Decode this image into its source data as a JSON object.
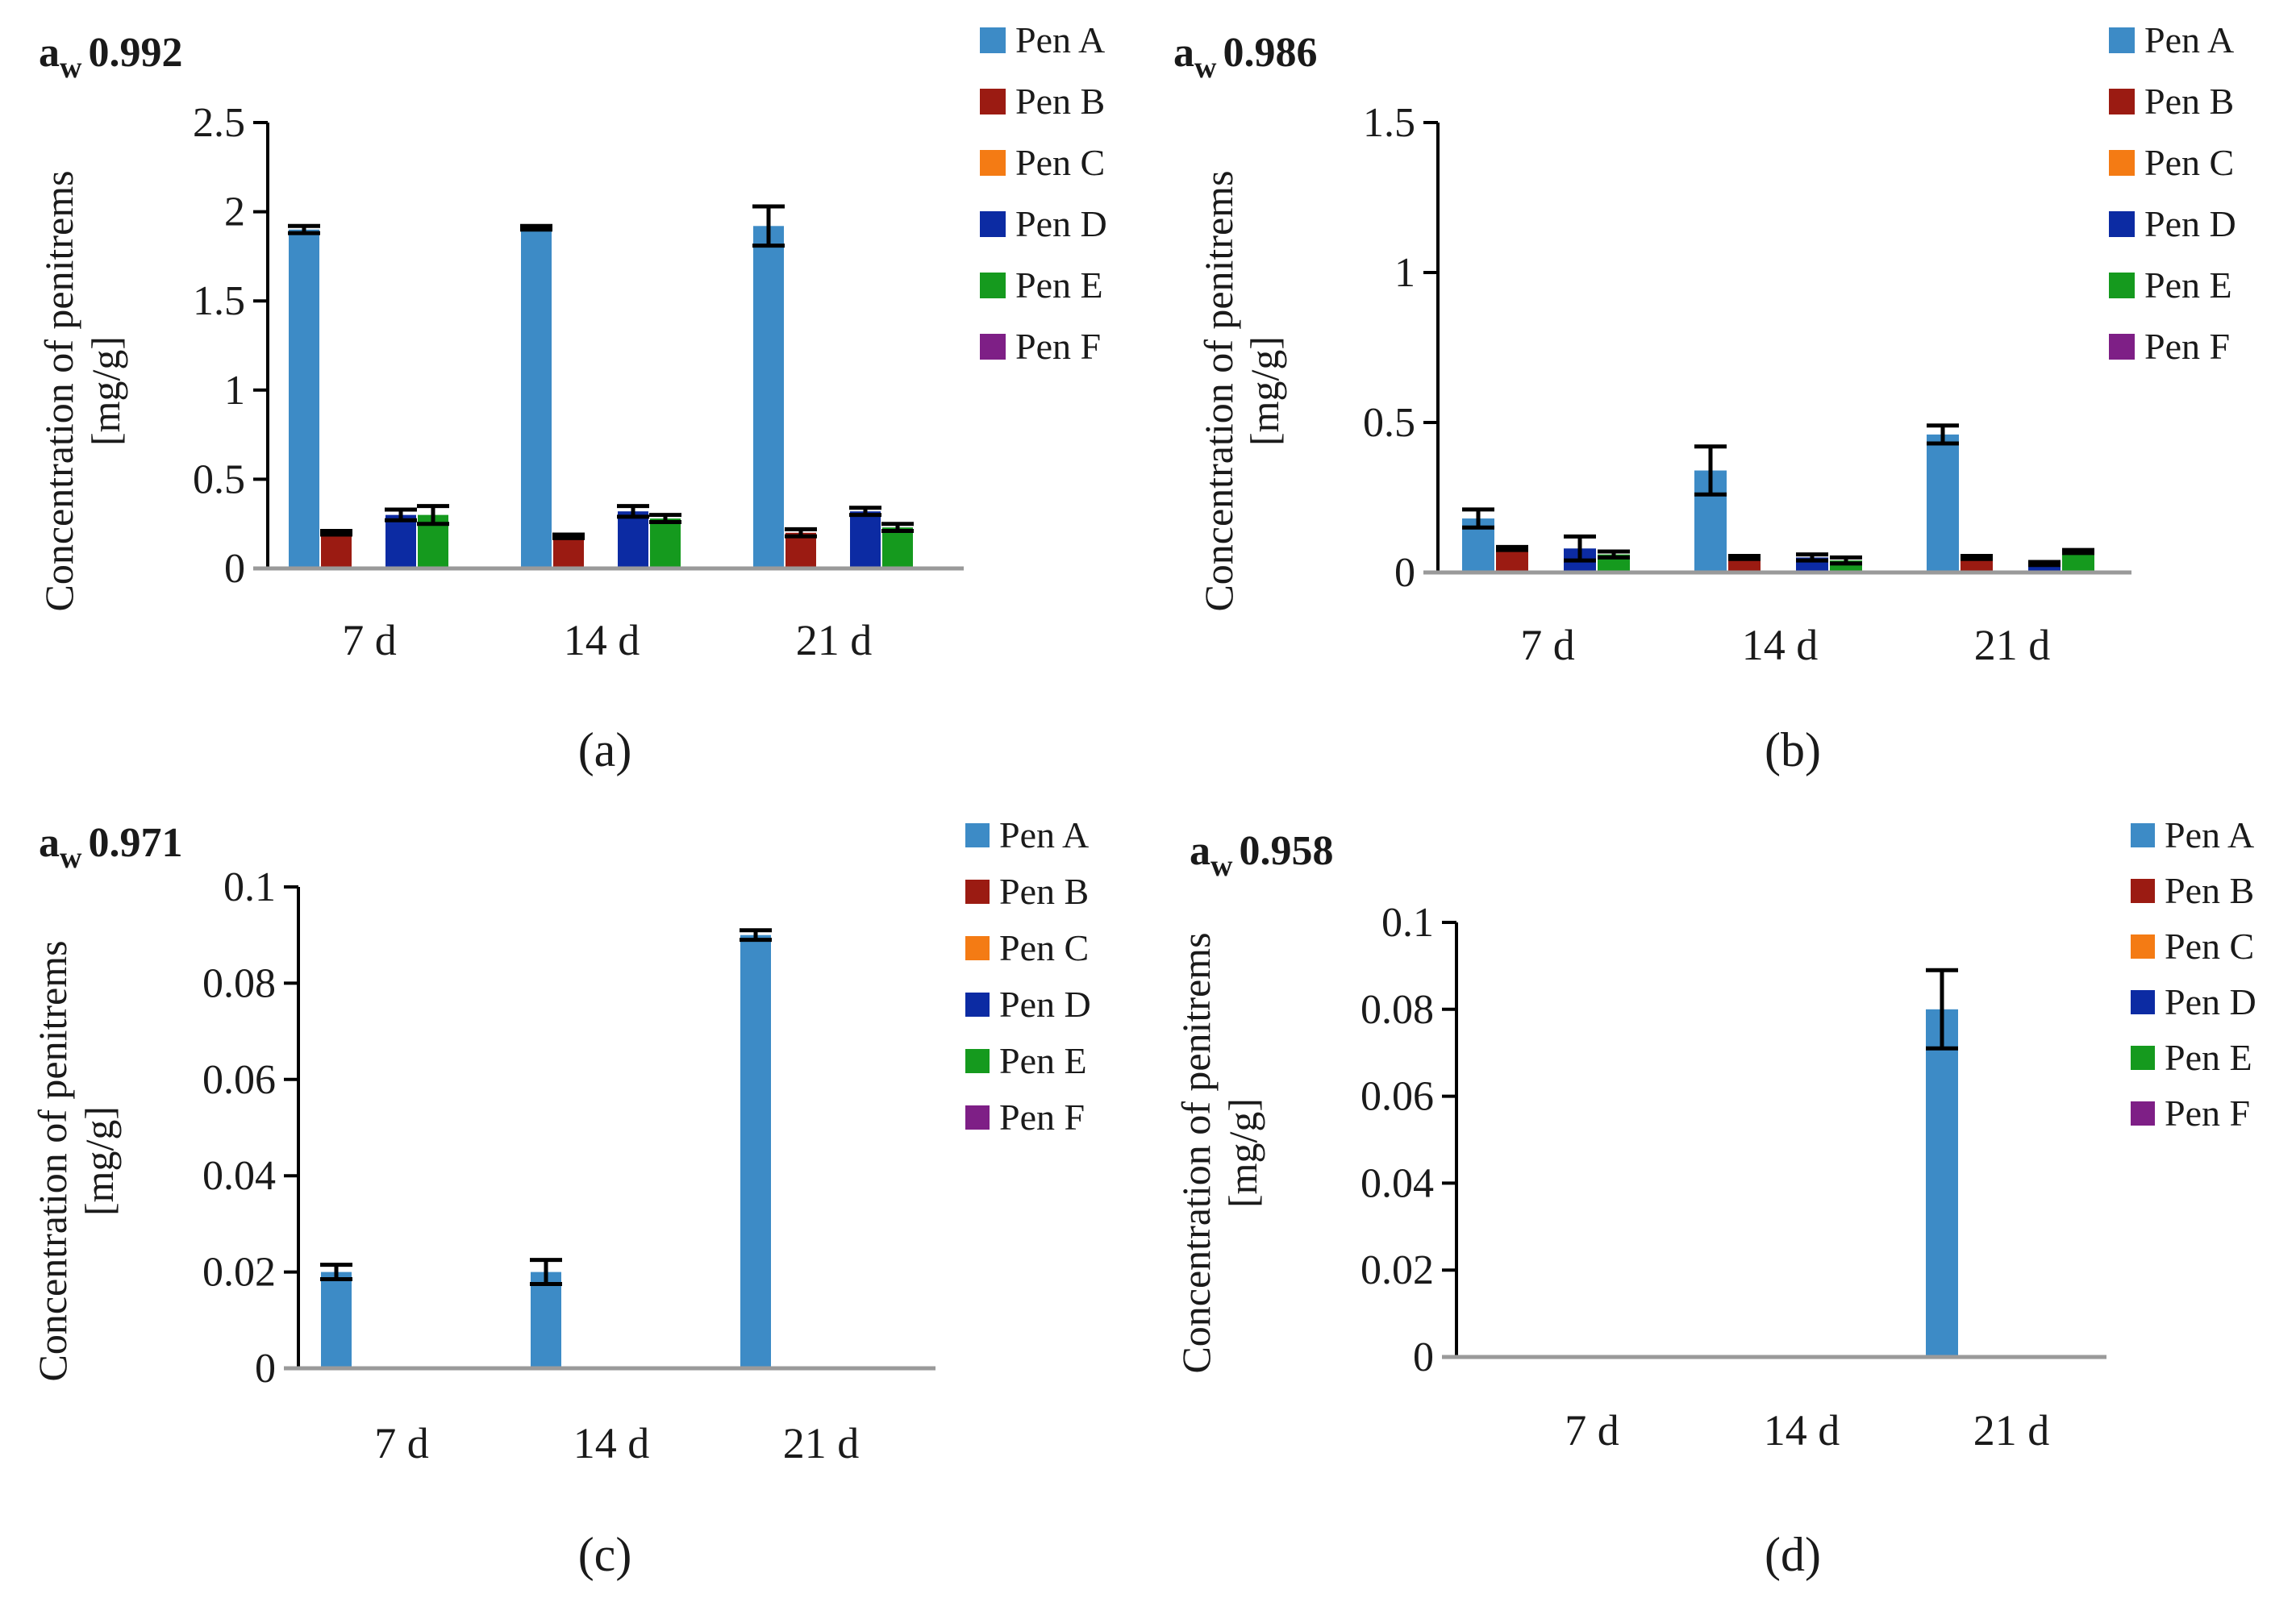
{
  "series_colors": {
    "Pen A": "#3d8bc6",
    "Pen B": "#9b1b12",
    "Pen C": "#f47b14",
    "Pen D": "#0c2ba3",
    "Pen E": "#159a1e",
    "Pen F": "#7e1f86"
  },
  "chart_data": [
    {
      "type": "bar",
      "panel": "(a)",
      "title_main": "a",
      "title_sub": "w",
      "title_value": "0.992",
      "xlabel": "",
      "ylabel_line1": "Concentration of penitrems",
      "ylabel_line2": "[mg/g]",
      "ylim": [
        0,
        2.5
      ],
      "yticks": [
        0,
        0.5,
        1,
        1.5,
        2,
        2.5
      ],
      "ytick_labels": [
        "0",
        "0.5",
        "1",
        "1.5",
        "2",
        "2.5"
      ],
      "categories": [
        "7 d",
        "14 d",
        "21 d"
      ],
      "legend": [
        "Pen A",
        "Pen B",
        "Pen C",
        "Pen D",
        "Pen E",
        "Pen F"
      ],
      "series": [
        {
          "name": "Pen A",
          "values": [
            1.9,
            1.91,
            1.92
          ],
          "errors": [
            0.02,
            0.01,
            0.11
          ]
        },
        {
          "name": "Pen B",
          "values": [
            0.2,
            0.18,
            0.2
          ],
          "errors": [
            0.01,
            0.01,
            0.02
          ]
        },
        {
          "name": "Pen C",
          "values": [
            0,
            0,
            0
          ],
          "errors": [
            0,
            0,
            0
          ]
        },
        {
          "name": "Pen D",
          "values": [
            0.3,
            0.32,
            0.32
          ],
          "errors": [
            0.03,
            0.03,
            0.02
          ]
        },
        {
          "name": "Pen E",
          "values": [
            0.3,
            0.28,
            0.23
          ],
          "errors": [
            0.05,
            0.02,
            0.02
          ]
        },
        {
          "name": "Pen F",
          "values": [
            0,
            0,
            0
          ],
          "errors": [
            0,
            0,
            0
          ]
        }
      ]
    },
    {
      "type": "bar",
      "panel": "(b)",
      "title_main": "a",
      "title_sub": "w",
      "title_value": "0.986",
      "xlabel": "",
      "ylabel_line1": "Concentration of penitrems",
      "ylabel_line2": "[mg/g]",
      "ylim": [
        0,
        1.5
      ],
      "yticks": [
        0,
        0.5,
        1,
        1.5
      ],
      "ytick_labels": [
        "0",
        "0.5",
        "1",
        "1.5"
      ],
      "categories": [
        "7 d",
        "14 d",
        "21 d"
      ],
      "legend": [
        "Pen A",
        "Pen B",
        "Pen C",
        "Pen D",
        "Pen E",
        "Pen F"
      ],
      "series": [
        {
          "name": "Pen A",
          "values": [
            0.18,
            0.34,
            0.46
          ],
          "errors": [
            0.03,
            0.08,
            0.03
          ]
        },
        {
          "name": "Pen B",
          "values": [
            0.08,
            0.05,
            0.05
          ],
          "errors": [
            0.005,
            0.005,
            0.005
          ]
        },
        {
          "name": "Pen C",
          "values": [
            0,
            0,
            0
          ],
          "errors": [
            0,
            0,
            0
          ]
        },
        {
          "name": "Pen D",
          "values": [
            0.08,
            0.05,
            0.03
          ],
          "errors": [
            0.04,
            0.01,
            0.005
          ]
        },
        {
          "name": "Pen E",
          "values": [
            0.06,
            0.04,
            0.07
          ],
          "errors": [
            0.01,
            0.01,
            0.005
          ]
        },
        {
          "name": "Pen F",
          "values": [
            0,
            0,
            0
          ],
          "errors": [
            0,
            0,
            0
          ]
        }
      ]
    },
    {
      "type": "bar",
      "panel": "(c)",
      "title_main": "a",
      "title_sub": "w",
      "title_value": "0.971",
      "xlabel": "",
      "ylabel_line1": "Concentration of penitrems",
      "ylabel_line2": "[mg/g]",
      "ylim": [
        0,
        0.1
      ],
      "yticks": [
        0,
        0.02,
        0.04,
        0.06,
        0.08,
        0.1
      ],
      "ytick_labels": [
        "0",
        "0.02",
        "0.04",
        "0.06",
        "0.08",
        "0.1"
      ],
      "categories": [
        "7 d",
        "14 d",
        "21 d"
      ],
      "legend": [
        "Pen A",
        "Pen B",
        "Pen C",
        "Pen D",
        "Pen E",
        "Pen F"
      ],
      "series": [
        {
          "name": "Pen A",
          "values": [
            0.02,
            0.02,
            0.09
          ],
          "errors": [
            0.0015,
            0.0025,
            0.001
          ]
        },
        {
          "name": "Pen B",
          "values": [
            0,
            0,
            0
          ],
          "errors": [
            0,
            0,
            0
          ]
        },
        {
          "name": "Pen C",
          "values": [
            0,
            0,
            0
          ],
          "errors": [
            0,
            0,
            0
          ]
        },
        {
          "name": "Pen D",
          "values": [
            0,
            0,
            0
          ],
          "errors": [
            0,
            0,
            0
          ]
        },
        {
          "name": "Pen E",
          "values": [
            0,
            0,
            0
          ],
          "errors": [
            0,
            0,
            0
          ]
        },
        {
          "name": "Pen F",
          "values": [
            0,
            0,
            0
          ],
          "errors": [
            0,
            0,
            0
          ]
        }
      ]
    },
    {
      "type": "bar",
      "panel": "(d)",
      "title_main": "a",
      "title_sub": "w",
      "title_value": "0.958",
      "xlabel": "",
      "ylabel_line1": "Concentration of penitrems",
      "ylabel_line2": "[mg/g]",
      "ylim": [
        0,
        0.1
      ],
      "yticks": [
        0,
        0.02,
        0.04,
        0.06,
        0.08,
        0.1
      ],
      "ytick_labels": [
        "0",
        "0.02",
        "0.04",
        "0.06",
        "0.08",
        "0.1"
      ],
      "categories": [
        "7 d",
        "14 d",
        "21 d"
      ],
      "legend": [
        "Pen A",
        "Pen B",
        "Pen C",
        "Pen D",
        "Pen E",
        "Pen F"
      ],
      "series": [
        {
          "name": "Pen A",
          "values": [
            0,
            0,
            0.08
          ],
          "errors": [
            0,
            0,
            0.009
          ]
        },
        {
          "name": "Pen B",
          "values": [
            0,
            0,
            0
          ],
          "errors": [
            0,
            0,
            0
          ]
        },
        {
          "name": "Pen C",
          "values": [
            0,
            0,
            0
          ],
          "errors": [
            0,
            0,
            0
          ]
        },
        {
          "name": "Pen D",
          "values": [
            0,
            0,
            0
          ],
          "errors": [
            0,
            0,
            0
          ]
        },
        {
          "name": "Pen E",
          "values": [
            0,
            0,
            0
          ],
          "errors": [
            0,
            0,
            0
          ]
        },
        {
          "name": "Pen F",
          "values": [
            0,
            0,
            0
          ],
          "errors": [
            0,
            0,
            0
          ]
        }
      ]
    }
  ]
}
